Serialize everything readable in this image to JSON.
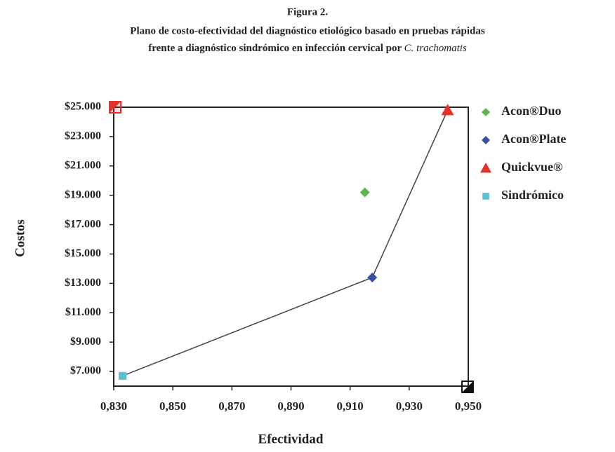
{
  "chart_data": {
    "type": "scatter",
    "title": {
      "figure": "Figura 2.",
      "line1": "Plano de costo-efectividad del diagnóstico etiológico basado en pruebas rápidas",
      "line2": "frente a diagnóstico sindrómico en infección cervical por ",
      "line2_italic": "C. trachomatis"
    },
    "xlabel": "Efectividad",
    "ylabel": "Costos",
    "xlim": [
      0.83,
      0.95
    ],
    "xticks": [
      {
        "value": 0.83,
        "label": "0,830"
      },
      {
        "value": 0.85,
        "label": "0,850"
      },
      {
        "value": 0.87,
        "label": "0,870"
      },
      {
        "value": 0.89,
        "label": "0,890"
      },
      {
        "value": 0.91,
        "label": "0,910"
      },
      {
        "value": 0.93,
        "label": "0,930"
      },
      {
        "value": 0.95,
        "label": "0,950"
      }
    ],
    "ylim": [
      6000,
      25000
    ],
    "yticks": [
      {
        "value": 7000,
        "label": "$7.000"
      },
      {
        "value": 9000,
        "label": "$9.000"
      },
      {
        "value": 11000,
        "label": "$11.000"
      },
      {
        "value": 13000,
        "label": "$13.000"
      },
      {
        "value": 15000,
        "label": "$15.000"
      },
      {
        "value": 17000,
        "label": "$17.000"
      },
      {
        "value": 19000,
        "label": "$19.000"
      },
      {
        "value": 21000,
        "label": "$21.000"
      },
      {
        "value": 23000,
        "label": "$23.000"
      },
      {
        "value": 25000,
        "label": "$25.000"
      }
    ],
    "series": [
      {
        "name": "Acon®Duo",
        "color": "#5cb84a",
        "marker": "diamond",
        "x": [
          0.915
        ],
        "values": [
          19200
        ]
      },
      {
        "name": "Acon®Plate",
        "color": "#3a4fa8",
        "marker": "diamond",
        "x": [
          0.9175
        ],
        "values": [
          13400
        ]
      },
      {
        "name": "Quickvue®",
        "color": "#e8302a",
        "marker": "triangle",
        "x": [
          0.943
        ],
        "values": [
          24800
        ]
      },
      {
        "name": "Sindrómico",
        "color": "#5bc0d0",
        "marker": "square",
        "x": [
          0.833
        ],
        "values": [
          6700
        ]
      }
    ],
    "frontier": [
      3,
      1,
      2
    ],
    "legend": "right"
  }
}
